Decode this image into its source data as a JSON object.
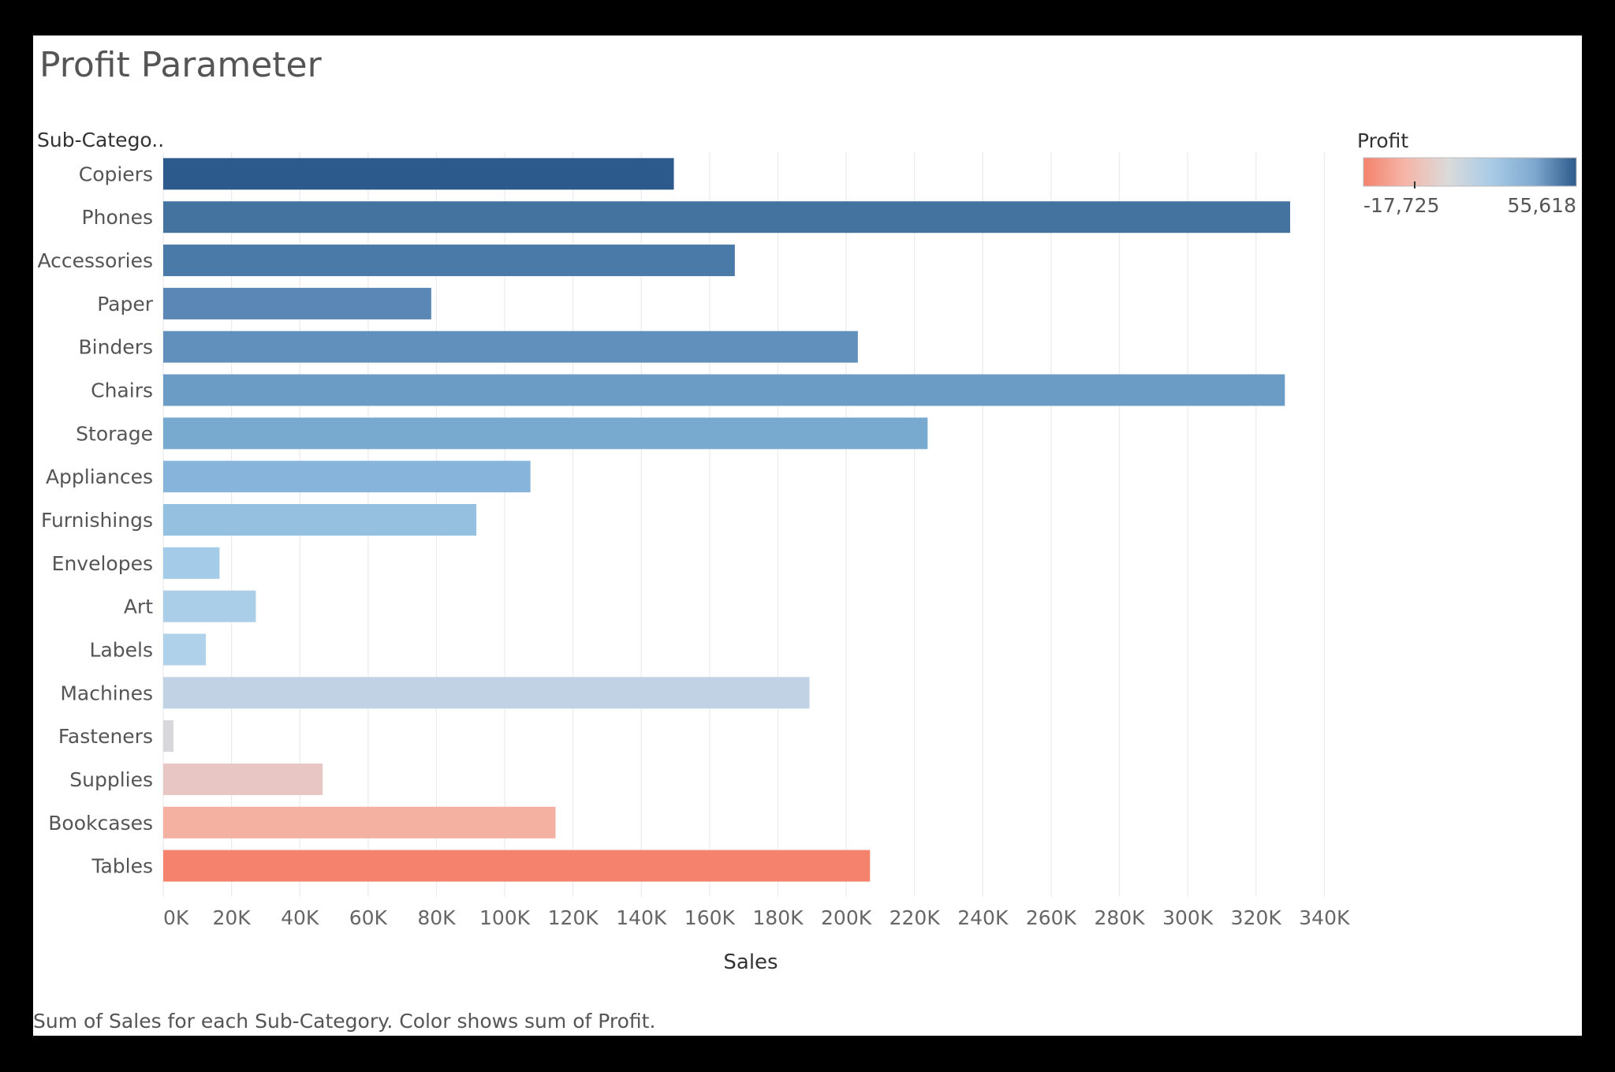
{
  "chart_data": {
    "type": "bar",
    "orientation": "horizontal",
    "title": "Profit Parameter",
    "row_header": "Sub-Catego..",
    "categories": [
      "Copiers",
      "Phones",
      "Accessories",
      "Paper",
      "Binders",
      "Chairs",
      "Storage",
      "Appliances",
      "Furnishings",
      "Envelopes",
      "Art",
      "Labels",
      "Machines",
      "Fasteners",
      "Supplies",
      "Bookcases",
      "Tables"
    ],
    "series": [
      {
        "values": [
          149528,
          330007,
          167380,
          78479,
          203413,
          328449,
          223844,
          107532,
          91705,
          16476,
          27119,
          12486,
          189239,
          3024,
          46674,
          114880,
          206966
        ]
      }
    ],
    "bar_colors": [
      "#2d5a8c",
      "#44739f",
      "#4a7aa8",
      "#5b87b6",
      "#6190bd",
      "#6b9cc5",
      "#78a9cf",
      "#86b4da",
      "#95c0e0",
      "#a4cbe7",
      "#aacde8",
      "#b0d1ea",
      "#c0d2e4",
      "#d8d8dc",
      "#e8c6c4",
      "#f4b0a1",
      "#f4826d"
    ],
    "xlabel": "Sales",
    "x_ticks": [
      "0K",
      "20K",
      "40K",
      "60K",
      "80K",
      "100K",
      "120K",
      "140K",
      "160K",
      "180K",
      "200K",
      "220K",
      "240K",
      "260K",
      "280K",
      "300K",
      "320K",
      "340K"
    ],
    "xlim": [
      0,
      345000
    ],
    "grid": "vertical",
    "legend": {
      "title": "Profit",
      "min_label": "-17,725",
      "max_label": "55,618",
      "gradient": [
        "#f4826d",
        "#f5b6a8",
        "#dadada",
        "#a9cbe6",
        "#7fa9cf",
        "#2d5a8c"
      ],
      "placement": "top-right"
    },
    "caption": "Sum of Sales for each Sub-Category.  Color shows sum of Profit."
  }
}
